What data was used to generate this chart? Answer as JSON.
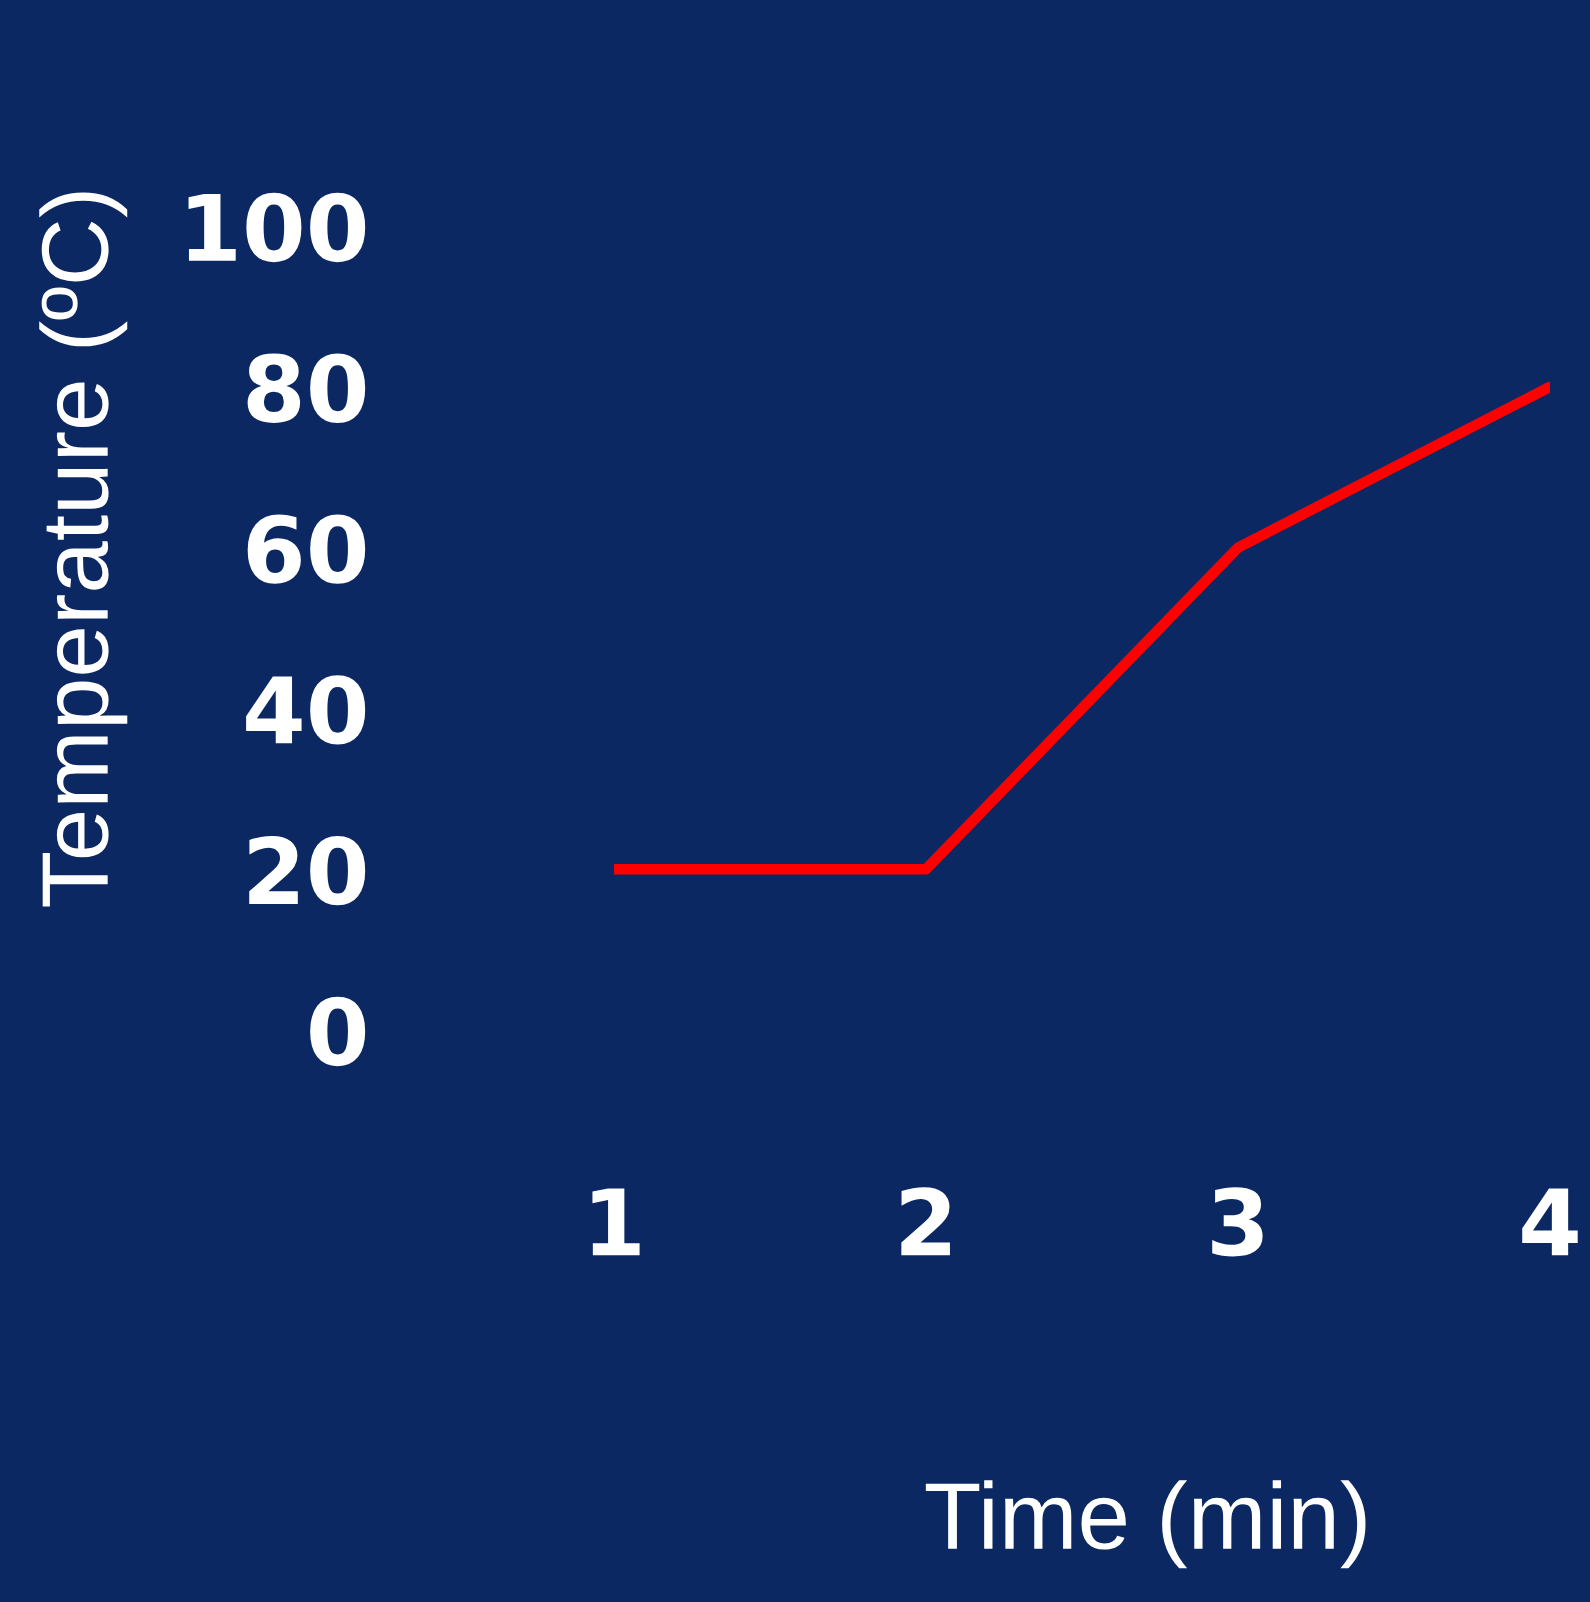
{
  "chart_data": {
    "type": "line",
    "xlabel": "Time (min)",
    "ylabel": "Temperature (ºC)",
    "x": [
      1,
      2,
      3,
      4
    ],
    "series": [
      {
        "color": "#ff0000",
        "values": [
          20,
          20,
          60,
          80
        ]
      }
    ],
    "xlim": [
      1,
      4
    ],
    "xticks": [
      1,
      2,
      3,
      4
    ],
    "ylim": [
      0,
      100
    ],
    "yticks": [
      0,
      20,
      40,
      60,
      80,
      100
    ],
    "grid": false,
    "legend": false,
    "line_style": "solid",
    "marker": "none"
  }
}
